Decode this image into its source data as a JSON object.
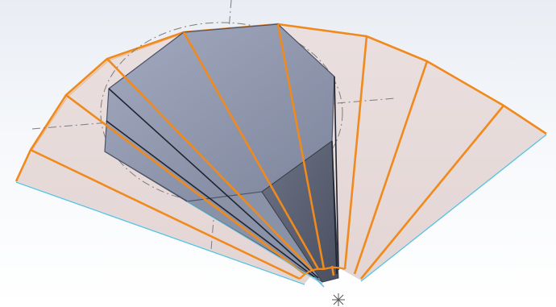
{
  "viewport": {
    "background_top": "#e9edf3",
    "background_bottom": "#ffffff"
  },
  "colors": {
    "flat_pattern_fill": "#e7d9d8",
    "bend_line": "#f08a1c",
    "solid_top": "#8f97ad",
    "solid_side_light": "#a5abbe",
    "solid_side_dark": "#5f6778",
    "sketch_line": "#7d7d7d",
    "edge_highlight": "#5bc0de",
    "silhouette_edge": "#1f2430"
  },
  "icons": {
    "origin_marker": "asterisk-icon"
  }
}
